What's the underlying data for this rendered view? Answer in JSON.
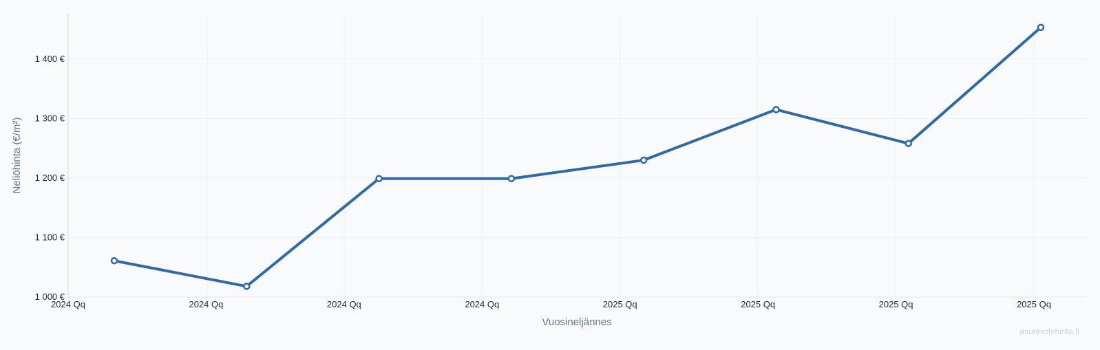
{
  "chart_data": {
    "type": "line",
    "title": "",
    "xlabel": "Vuosineljännes",
    "ylabel": "Neliöhinta (€/m²)",
    "x_tick_labels": [
      "2024 Qq",
      "2024 Qq",
      "2024 Qq",
      "2024 Qq",
      "2025 Qq",
      "2025 Qq",
      "2025 Qq",
      "2025 Qq"
    ],
    "y_ticks": [
      1000,
      1100,
      1200,
      1300,
      1400
    ],
    "y_tick_labels": [
      "1 000 €",
      "1 100 €",
      "1 200 €",
      "1 300 €",
      "1 400 €"
    ],
    "ylim": [
      1000,
      1476
    ],
    "grid": true,
    "series": [
      {
        "color": "#2f6aa6",
        "values": [
          1061,
          1018,
          1199,
          1199,
          1230,
          1315,
          1258,
          1453
        ]
      }
    ]
  },
  "watermark": "asunnollehinta.fi"
}
